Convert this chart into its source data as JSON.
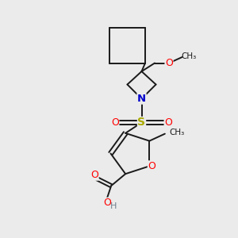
{
  "background_color": "#ebebeb",
  "bond_color": "#1a1a1a",
  "atom_colors": {
    "O": "#ff0000",
    "N": "#0000cc",
    "S": "#aaaa00",
    "C": "#1a1a1a",
    "H": "#708090"
  },
  "figsize": [
    3.0,
    3.0
  ],
  "dpi": 100,
  "bond_lw": 1.4,
  "font_size": 8.5
}
